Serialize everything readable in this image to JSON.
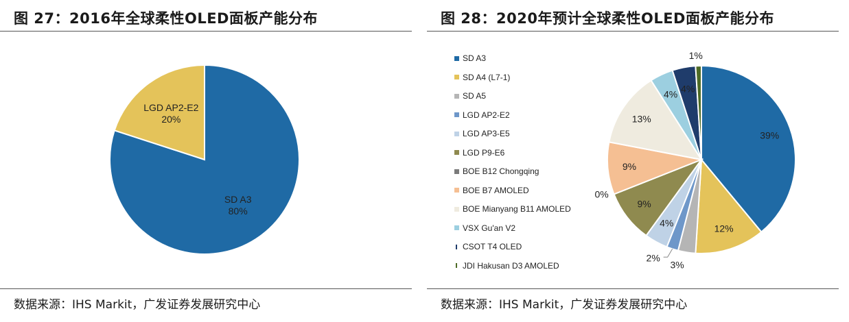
{
  "left_panel": {
    "title": "图 27：2016年全球柔性OLED面板产能分布",
    "source": "数据来源：IHS Markit，广发证券发展研究中心"
  },
  "right_panel": {
    "title": "图 28：2020年预计全球柔性OLED面板产能分布",
    "source": "数据来源：IHS Markit，广发证券发展研究中心"
  },
  "chart_data": [
    {
      "type": "pie",
      "title": "图 27：2016年全球柔性OLED面板产能分布",
      "slices": [
        {
          "label": "SD A3",
          "value": 80,
          "value_label": "80%",
          "color": "#1f6aa5"
        },
        {
          "label": "LGD AP2-E2",
          "value": 20,
          "value_label": "20%",
          "color": "#e4c35a"
        }
      ]
    },
    {
      "type": "pie",
      "title": "图 28：2020年预计全球柔性OLED面板产能分布",
      "legend_position": "left",
      "slices": [
        {
          "label": "SD A3",
          "value": 39,
          "value_label": "39%",
          "color": "#1f6aa5"
        },
        {
          "label": "SD A4 (L7-1)",
          "value": 12,
          "value_label": "12%",
          "color": "#e4c35a"
        },
        {
          "label": "SD A5",
          "value": 3,
          "value_label": "3%",
          "color": "#b5b5b5"
        },
        {
          "label": "LGD AP2-E2",
          "value": 2,
          "value_label": "2%",
          "color": "#6e97c9"
        },
        {
          "label": "LGD AP3-E5",
          "value": 4,
          "value_label": "4%",
          "color": "#bfd2e6"
        },
        {
          "label": "LGD P9-E6",
          "value": 9,
          "value_label": "9%",
          "color": "#8f8a4f"
        },
        {
          "label": "BOE B12 Chongqing",
          "value": 0,
          "value_label": "0%",
          "color": "#7b7b7b"
        },
        {
          "label": "BOE B7 AMOLED",
          "value": 9,
          "value_label": "9%",
          "color": "#f5bf93"
        },
        {
          "label": "BOE Mianyang B11 AMOLED",
          "value": 13,
          "value_label": "13%",
          "color": "#efebdf"
        },
        {
          "label": "VSX Gu'an V2",
          "value": 4,
          "value_label": "4%",
          "color": "#9ccfe0"
        },
        {
          "label": "CSOT T4 OLED",
          "value": 4,
          "value_label": "4%",
          "color": "#1f3c6b"
        },
        {
          "label": "JDI Hakusan D3 AMOLED",
          "value": 1,
          "value_label": "1%",
          "color": "#4e6b26"
        }
      ]
    }
  ]
}
